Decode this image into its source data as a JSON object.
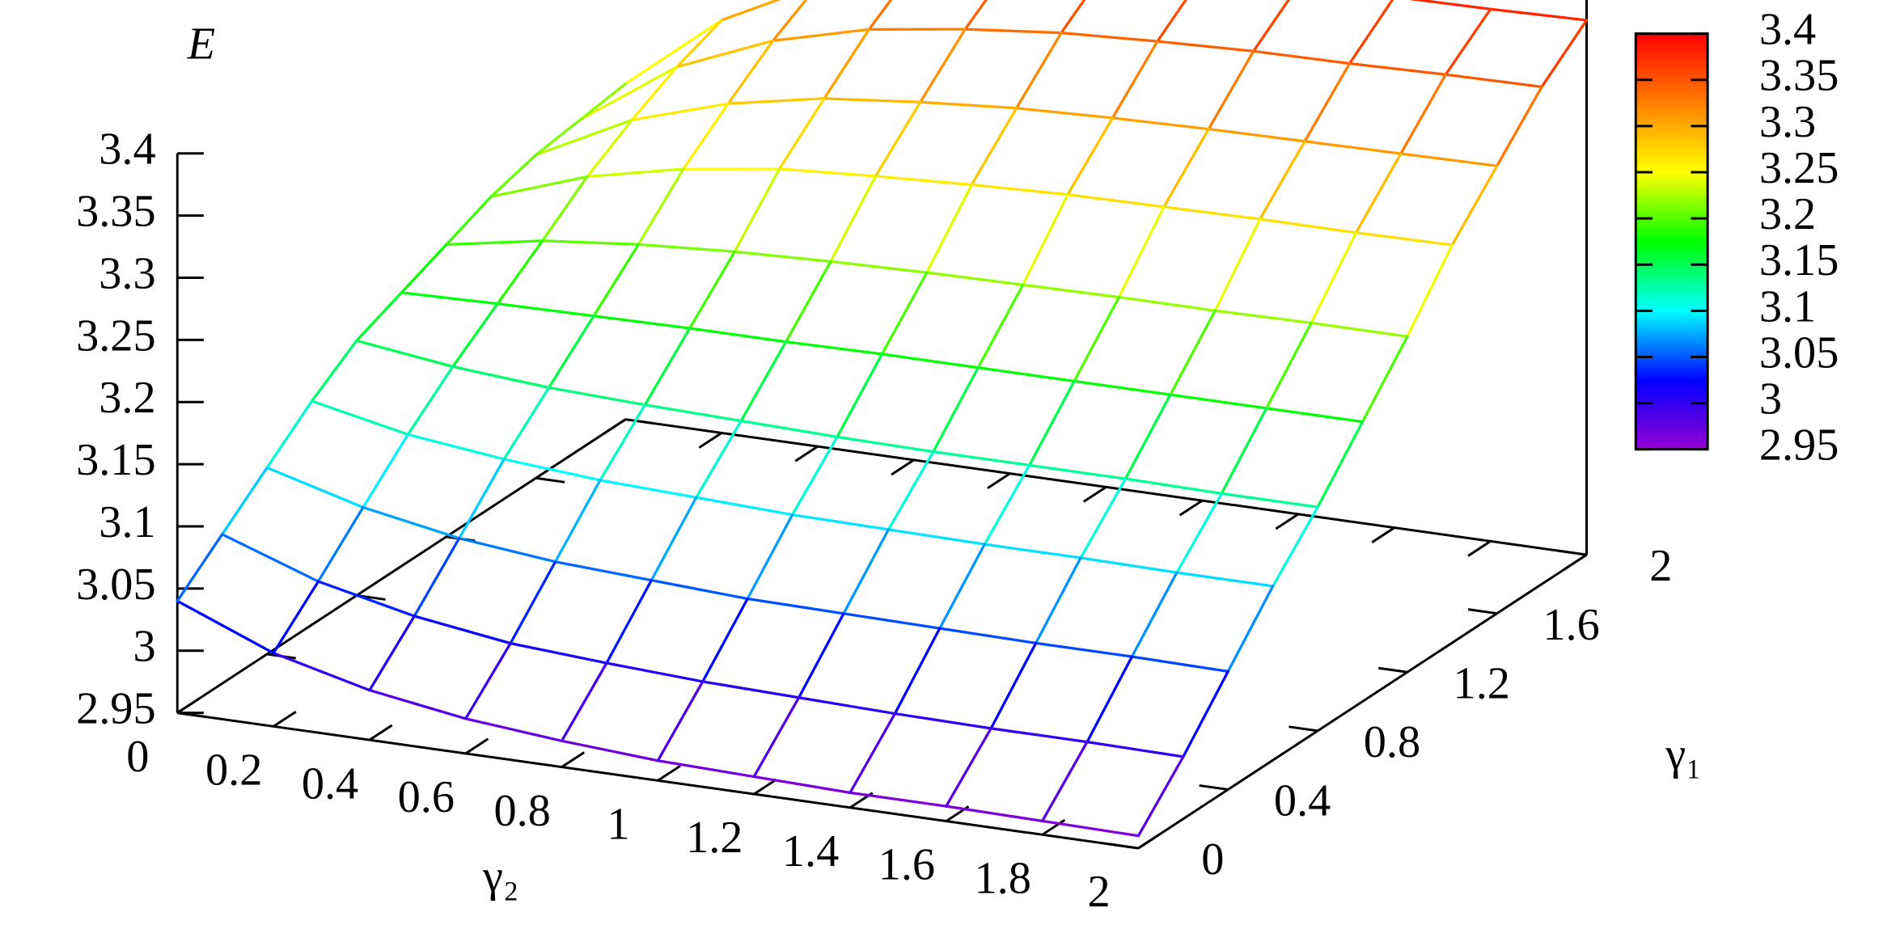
{
  "chart_data": {
    "type": "surface",
    "xlabel": "γ₂",
    "ylabel": "γ₁",
    "zlabel": "E",
    "x": [
      0,
      0.2,
      0.4,
      0.6,
      0.8,
      1,
      1.2,
      1.4,
      1.6,
      1.8,
      2
    ],
    "y": [
      0,
      0.2,
      0.4,
      0.6,
      0.8,
      1,
      1.2,
      1.4,
      1.6,
      1.8,
      2
    ],
    "z": [
      [
        3.04,
        3.009,
        2.99,
        2.978,
        2.971,
        2.966,
        2.964,
        2.962,
        2.962,
        2.961,
        2.96
      ],
      [
        3.07,
        3.043,
        3.026,
        3.015,
        3.01,
        3.006,
        3.004,
        3.002,
        3.001,
        3.001,
        3.0
      ],
      [
        3.1,
        3.079,
        3.065,
        3.057,
        3.053,
        3.049,
        3.048,
        3.047,
        3.046,
        3.046,
        3.045
      ],
      [
        3.13,
        3.114,
        3.105,
        3.099,
        3.096,
        3.093,
        3.092,
        3.091,
        3.091,
        3.09,
        3.09
      ],
      [
        3.155,
        3.145,
        3.139,
        3.136,
        3.134,
        3.132,
        3.131,
        3.131,
        3.131,
        3.13,
        3.13
      ],
      [
        3.17,
        3.172,
        3.173,
        3.174,
        3.174,
        3.175,
        3.175,
        3.175,
        3.175,
        3.175,
        3.175
      ],
      [
        3.185,
        3.199,
        3.207,
        3.212,
        3.215,
        3.217,
        3.218,
        3.219,
        3.219,
        3.22,
        3.22
      ],
      [
        3.2,
        3.227,
        3.244,
        3.255,
        3.26,
        3.264,
        3.267,
        3.268,
        3.269,
        3.269,
        3.27
      ],
      [
        3.21,
        3.249,
        3.273,
        3.288,
        3.296,
        3.302,
        3.305,
        3.307,
        3.308,
        3.309,
        3.31
      ],
      [
        3.215,
        3.268,
        3.3,
        3.32,
        3.331,
        3.339,
        3.343,
        3.346,
        3.347,
        3.349,
        3.35
      ],
      [
        3.22,
        3.282,
        3.321,
        3.345,
        3.358,
        3.367,
        3.372,
        3.375,
        3.377,
        3.378,
        3.38
      ]
    ],
    "xlim": [
      0,
      2
    ],
    "ylim": [
      0,
      2
    ],
    "zlim": [
      2.95,
      3.4
    ],
    "xticks": [
      0,
      0.2,
      0.4,
      0.6,
      0.8,
      1,
      1.2,
      1.4,
      1.6,
      1.8,
      2
    ],
    "yticks": [
      0,
      0.4,
      0.8,
      1.2,
      1.6,
      2
    ],
    "zticks": [
      2.95,
      3,
      3.05,
      3.1,
      3.15,
      3.2,
      3.25,
      3.3,
      3.35,
      3.4
    ],
    "cblim": [
      2.95,
      3.4
    ],
    "cbticks": [
      2.95,
      3,
      3.05,
      3.1,
      3.15,
      3.2,
      3.25,
      3.3,
      3.35,
      3.4
    ],
    "palette": [
      "#9400d3",
      "#0000ff",
      "#00ffff",
      "#00ff00",
      "#ffff00",
      "#ff7f00",
      "#ff0000"
    ]
  }
}
